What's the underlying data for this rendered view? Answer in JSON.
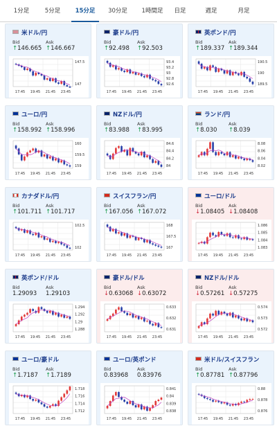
{
  "tabs": [
    {
      "label": "1分足",
      "active": false
    },
    {
      "label": "5分足",
      "active": false
    },
    {
      "label": "15分足",
      "active": true
    },
    {
      "label": "30分足",
      "active": false
    },
    {
      "label": "1時間足",
      "active": false
    },
    {
      "label": "日足",
      "active": false
    },
    {
      "label": "週足",
      "active": false
    },
    {
      "label": "月足",
      "active": false
    }
  ],
  "labels": {
    "bid": "Bid",
    "ask": "Ask"
  },
  "colors": {
    "up": "#1c9c4c",
    "down": "#d0283c",
    "candle_up": "#e23a3a",
    "candle_down": "#2840a8",
    "ma": "#c040c0"
  },
  "time_labels": [
    "17:45",
    "19:45",
    "21:45",
    "23:45"
  ],
  "cards": [
    {
      "name": "usd-jpy",
      "pair": "米ドル/円",
      "flag": "us",
      "bg": "blue",
      "trend": "up",
      "bid": "146.665",
      "ask": "146.667",
      "chart_data": {
        "type": "candlestick",
        "y_ticks": [
          "147.5",
          "147"
        ],
        "ylim": [
          146.7,
          147.7
        ],
        "path": [
          147.5,
          147.45,
          147.4,
          147.3,
          147.35,
          147.25,
          147.1,
          147.2,
          147.15,
          147.1,
          146.95,
          147.0,
          146.9,
          147.0,
          146.85,
          146.8,
          146.9,
          146.75,
          146.7,
          146.66
        ]
      }
    },
    {
      "name": "aud-jpy",
      "pair": "豪ドル/円",
      "flag": "au",
      "bg": "blue",
      "trend": "up",
      "bid": "92.498",
      "ask": "92.503",
      "chart_data": {
        "type": "candlestick",
        "y_ticks": [
          "93.4",
          "93.2",
          "93",
          "92.8",
          "92.6"
        ],
        "ylim": [
          92.45,
          93.5
        ],
        "path": [
          93.35,
          93.2,
          93.25,
          93.1,
          93.15,
          93.05,
          93.0,
          93.1,
          92.95,
          93.0,
          92.9,
          92.95,
          92.85,
          92.8,
          92.9,
          92.75,
          92.7,
          92.65,
          92.55,
          92.5
        ]
      }
    },
    {
      "name": "gbp-jpy",
      "pair": "英ポンド/円",
      "flag": "gb",
      "bg": "blue",
      "trend": "up",
      "bid": "189.337",
      "ask": "189.344",
      "chart_data": {
        "type": "candlestick",
        "y_ticks": [
          "190.5",
          "190",
          "189.5"
        ],
        "ylim": [
          189.2,
          190.9
        ],
        "path": [
          190.6,
          190.3,
          190.4,
          190.2,
          190.5,
          190.4,
          190.1,
          190.3,
          190.2,
          190.0,
          190.2,
          189.9,
          190.1,
          190.0,
          189.9,
          190.1,
          189.8,
          189.7,
          189.5,
          189.35
        ]
      }
    },
    {
      "name": "eur-jpy",
      "pair": "ユーロ/円",
      "flag": "eu",
      "bg": "blue",
      "trend": "up",
      "bid": "158.992",
      "ask": "158.996",
      "chart_data": {
        "type": "candlestick",
        "y_ticks": [
          "160",
          "159.5",
          "159"
        ],
        "ylim": [
          158.9,
          160.3
        ],
        "path": [
          159.9,
          159.6,
          159.3,
          159.5,
          159.7,
          159.8,
          159.9,
          159.7,
          159.8,
          159.5,
          159.6,
          159.4,
          159.5,
          159.3,
          159.4,
          159.2,
          159.3,
          159.1,
          159.05,
          158.99
        ]
      }
    },
    {
      "name": "nzd-jpy",
      "pair": "NZドル/円",
      "flag": "nz",
      "bg": "blue",
      "trend": "up",
      "bid": "83.988",
      "ask": "83.995",
      "chart_data": {
        "type": "candlestick",
        "y_ticks": [
          "84.6",
          "84.4",
          "84.2",
          "84"
        ],
        "ylim": [
          83.95,
          84.7
        ],
        "path": [
          84.3,
          84.2,
          84.35,
          84.5,
          84.55,
          84.4,
          84.45,
          84.3,
          84.5,
          84.4,
          84.35,
          84.3,
          84.4,
          84.25,
          84.3,
          84.2,
          84.1,
          84.15,
          84.05,
          83.99
        ]
      }
    },
    {
      "name": "zar-jpy",
      "pair": "ランド/円",
      "flag": "za",
      "bg": "blue",
      "trend": "up",
      "bid": "8.030",
      "ask": "8.039",
      "chart_data": {
        "type": "candlestick",
        "y_ticks": [
          "8.08",
          "8.06",
          "8.04",
          "8.02"
        ],
        "ylim": [
          8.01,
          8.095
        ],
        "path": [
          8.05,
          8.06,
          8.05,
          8.07,
          8.09,
          8.06,
          8.05,
          8.06,
          8.055,
          8.05,
          8.06,
          8.045,
          8.05,
          8.04,
          8.045,
          8.04,
          8.035,
          8.04,
          8.035,
          8.03
        ]
      }
    },
    {
      "name": "cad-jpy",
      "pair": "カナダドル/円",
      "flag": "ca",
      "bg": "blue",
      "trend": "up",
      "bid": "101.711",
      "ask": "101.717",
      "chart_data": {
        "type": "candlestick",
        "y_ticks": [
          "102.5",
          "102"
        ],
        "ylim": [
          101.65,
          102.85
        ],
        "path": [
          102.6,
          102.5,
          102.55,
          102.4,
          102.5,
          102.35,
          102.3,
          102.4,
          102.2,
          102.25,
          102.1,
          102.15,
          102.0,
          102.05,
          101.95,
          102.0,
          101.9,
          101.85,
          101.75,
          101.71
        ]
      }
    },
    {
      "name": "chf-jpy",
      "pair": "スイスフラン/円",
      "flag": "ch",
      "bg": "blue",
      "trend": "up",
      "bid": "167.056",
      "ask": "167.072",
      "chart_data": {
        "type": "candlestick",
        "y_ticks": [
          "168",
          "167.5",
          "167"
        ],
        "ylim": [
          166.95,
          168.2
        ],
        "path": [
          168.0,
          167.8,
          167.9,
          167.7,
          167.75,
          167.6,
          167.7,
          167.5,
          167.6,
          167.55,
          167.4,
          167.5,
          167.45,
          167.3,
          167.4,
          167.25,
          167.2,
          167.15,
          167.1,
          167.06
        ]
      }
    },
    {
      "name": "eur-usd",
      "pair": "ユーロ/ドル",
      "flag": "eu",
      "bg": "pink",
      "trend": "down",
      "bid": "1.08405",
      "ask": "1.08408",
      "chart_data": {
        "type": "candlestick",
        "y_ticks": [
          "1.086",
          "1.085",
          "1.084",
          "1.083"
        ],
        "ylim": [
          1.0825,
          1.0868
        ],
        "path": [
          1.0836,
          1.0838,
          1.0835,
          1.0845,
          1.0852,
          1.0848,
          1.0846,
          1.0853,
          1.0849,
          1.0847,
          1.0851,
          1.0845,
          1.0844,
          1.0848,
          1.0843,
          1.0842,
          1.0845,
          1.0841,
          1.0842,
          1.08405
        ]
      }
    },
    {
      "name": "gbp-usd",
      "pair": "英ポンド/ドル",
      "flag": "gb",
      "bg": "blue",
      "trend": "none",
      "bid": "1.29093",
      "ask": "1.29103",
      "chart_data": {
        "type": "candlestick",
        "y_ticks": [
          "1.294",
          "1.292",
          "1.29",
          "1.288"
        ],
        "ylim": [
          1.2875,
          1.2948
        ],
        "path": [
          1.2895,
          1.2905,
          1.2915,
          1.292,
          1.2925,
          1.2935,
          1.293,
          1.2925,
          1.294,
          1.2935,
          1.293,
          1.2925,
          1.293,
          1.292,
          1.2925,
          1.2915,
          1.292,
          1.2912,
          1.2915,
          1.2909
        ]
      }
    },
    {
      "name": "aud-usd",
      "pair": "豪ドル/ドル",
      "flag": "au",
      "bg": "pink",
      "trend": "down",
      "bid": "0.63068",
      "ask": "0.63072",
      "chart_data": {
        "type": "candlestick",
        "y_ticks": [
          "0.633",
          "0.632",
          "0.631"
        ],
        "ylim": [
          0.6302,
          0.6337
        ],
        "path": [
          0.6318,
          0.6322,
          0.6325,
          0.633,
          0.6333,
          0.6328,
          0.6326,
          0.6323,
          0.6325,
          0.632,
          0.6322,
          0.6318,
          0.632,
          0.6315,
          0.6316,
          0.6312,
          0.631,
          0.6313,
          0.6308,
          0.6307
        ]
      }
    },
    {
      "name": "nzd-usd",
      "pair": "NZドル/ドル",
      "flag": "nz",
      "bg": "pink",
      "trend": "down",
      "bid": "0.57261",
      "ask": "0.57275",
      "chart_data": {
        "type": "candlestick",
        "y_ticks": [
          "0.574",
          "0.573",
          "0.572"
        ],
        "ylim": [
          0.5716,
          0.5745
        ],
        "path": [
          0.5722,
          0.5726,
          0.5724,
          0.573,
          0.5735,
          0.5733,
          0.5738,
          0.5734,
          0.5737,
          0.5735,
          0.5733,
          0.5736,
          0.5731,
          0.5733,
          0.573,
          0.5728,
          0.573,
          0.5727,
          0.5728,
          0.5726
        ]
      }
    },
    {
      "name": "eur-aud",
      "pair": "ユーロ/豪ドル",
      "flag": "eu",
      "bg": "blue",
      "trend": "up",
      "bid": "1.7187",
      "ask": "1.7189",
      "chart_data": {
        "type": "candlestick",
        "y_ticks": [
          "1.718",
          "1.716",
          "1.714",
          "1.712"
        ],
        "ylim": [
          1.7108,
          1.7188
        ],
        "path": [
          1.7165,
          1.7158,
          1.7162,
          1.7155,
          1.716,
          1.715,
          1.7145,
          1.7148,
          1.714,
          1.7135,
          1.7128,
          1.7125,
          1.713,
          1.7135,
          1.713,
          1.7145,
          1.7155,
          1.7165,
          1.7175,
          1.7186
        ]
      }
    },
    {
      "name": "eur-gbp",
      "pair": "ユーロ/英ポンド",
      "flag": "eu",
      "bg": "blue",
      "trend": "none",
      "bid": "0.83968",
      "ask": "0.83976",
      "chart_data": {
        "type": "candlestick",
        "y_ticks": [
          "0.841",
          "0.84",
          "0.839",
          "0.838"
        ],
        "ylim": [
          0.8374,
          0.8414
        ],
        "path": [
          0.8385,
          0.8392,
          0.84,
          0.8405,
          0.8398,
          0.8394,
          0.8391,
          0.8388,
          0.8392,
          0.8386,
          0.8383,
          0.8387,
          0.838,
          0.8384,
          0.8378,
          0.8382,
          0.8386,
          0.8392,
          0.8394,
          0.8397
        ]
      }
    },
    {
      "name": "usd-chf",
      "pair": "米ドル/スイスフラン",
      "flag": "ch",
      "bg": "blue",
      "trend": "up",
      "bid": "0.87781",
      "ask": "0.87796",
      "chart_data": {
        "type": "candlestick",
        "y_ticks": [
          "0.88",
          "0.878",
          "0.876"
        ],
        "ylim": [
          0.8745,
          0.8808
        ],
        "path": [
          0.8788,
          0.8785,
          0.878,
          0.8778,
          0.8776,
          0.8772,
          0.8774,
          0.8771,
          0.8768,
          0.877,
          0.8765,
          0.8763,
          0.8767,
          0.8764,
          0.8769,
          0.8772,
          0.8771,
          0.8776,
          0.8778,
          0.8778
        ]
      }
    }
  ]
}
